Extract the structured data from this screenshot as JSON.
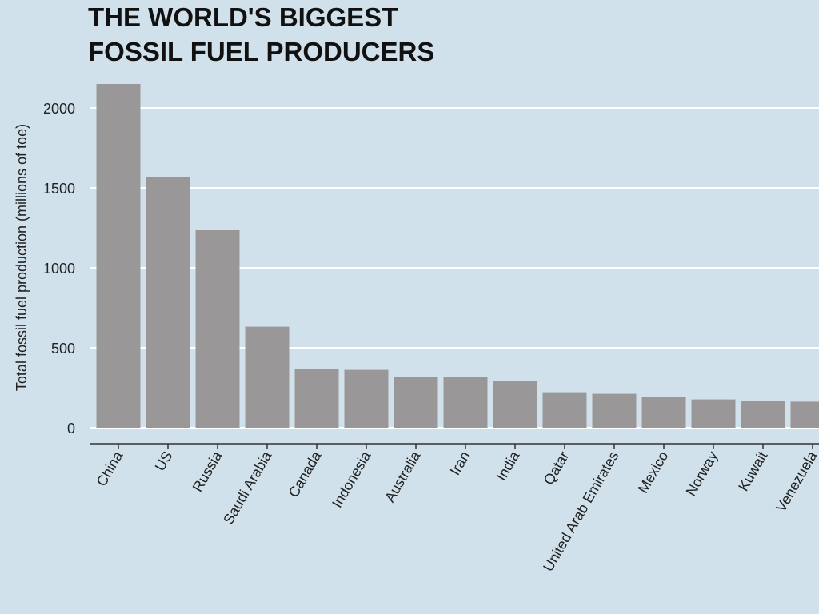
{
  "title": {
    "line1": "THE WORLD'S BIGGEST",
    "line2": "FOSSIL FUEL PRODUCERS"
  },
  "colors": {
    "background": "#d1e1eb",
    "bar": "#999798",
    "grid": "#ffffff",
    "axis": "#333333"
  },
  "chart_data": {
    "type": "bar",
    "title": "THE WORLD'S BIGGEST FOSSIL FUEL PRODUCERS",
    "xlabel": "",
    "ylabel": "Total fossil fuel production (millions of toe)",
    "categories": [
      "China",
      "US",
      "Russia",
      "Saudi Arabia",
      "Canada",
      "Indonesia",
      "Australia",
      "Iran",
      "India",
      "Qatar",
      "United Arab Emirates",
      "Mexico",
      "Norway",
      "Kuwait",
      "Venezuela"
    ],
    "values": [
      2150,
      1565,
      1235,
      632,
      365,
      362,
      320,
      315,
      295,
      222,
      212,
      195,
      177,
      165,
      163
    ],
    "yticks": [
      "0",
      "500",
      "1000",
      "1500",
      "2000"
    ],
    "ylim": [
      0,
      2200
    ],
    "grid": true,
    "legend": "none"
  }
}
